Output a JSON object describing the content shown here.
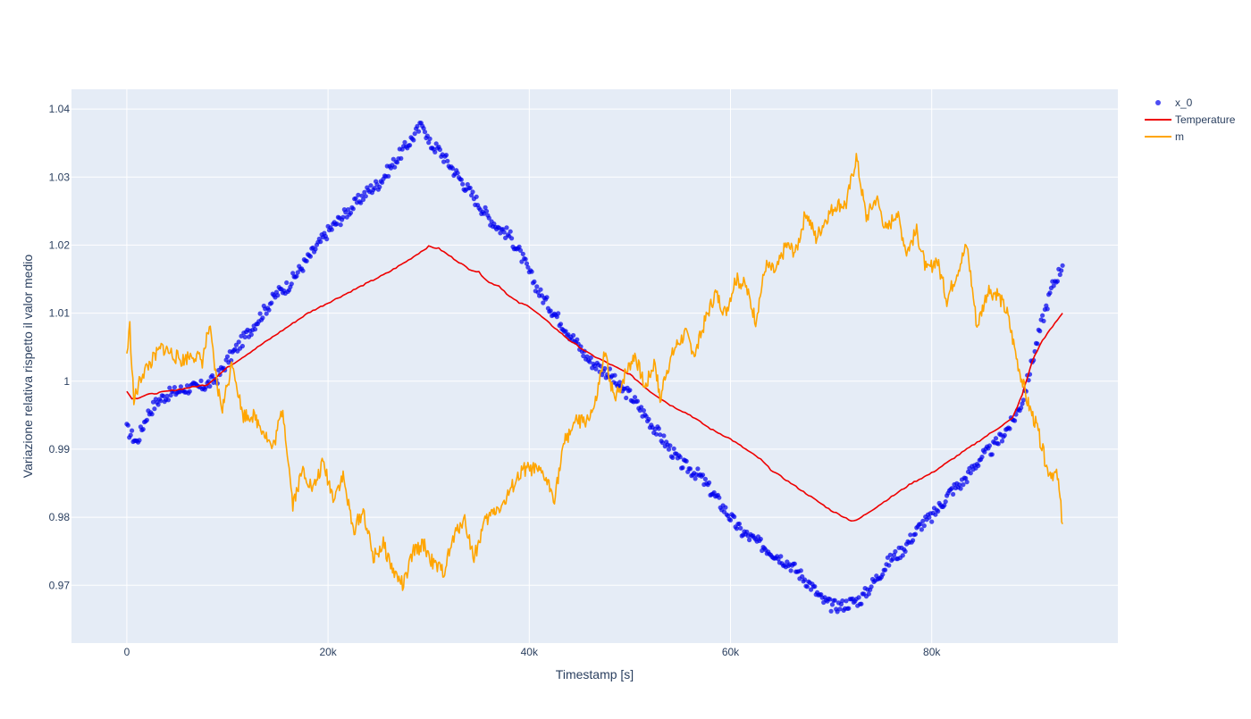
{
  "chart_data": {
    "type": "line",
    "xlabel": "Timestamp [s]",
    "ylabel": "Variazione relativa rispetto il valor medio",
    "xlim": [
      -5500,
      98500
    ],
    "ylim": [
      0.9615,
      1.0429
    ],
    "grid": true,
    "legend_position": "top-right",
    "plot_bg": "#e5ecf6",
    "x_ticks": [
      {
        "value": 0,
        "label": "0"
      },
      {
        "value": 20000,
        "label": "20k"
      },
      {
        "value": 40000,
        "label": "40k"
      },
      {
        "value": 60000,
        "label": "60k"
      },
      {
        "value": 80000,
        "label": "80k"
      }
    ],
    "y_ticks": [
      {
        "value": 0.97,
        "label": "0.97"
      },
      {
        "value": 0.98,
        "label": "0.98"
      },
      {
        "value": 0.99,
        "label": "0.99"
      },
      {
        "value": 1.0,
        "label": "1"
      },
      {
        "value": 1.01,
        "label": "1.01"
      },
      {
        "value": 1.02,
        "label": "1.02"
      },
      {
        "value": 1.03,
        "label": "1.03"
      },
      {
        "value": 1.04,
        "label": "1.04"
      }
    ],
    "series": [
      {
        "name": "x_0",
        "mode": "markers",
        "color": "#0000ee",
        "x": [
          0,
          1000,
          2000,
          3000,
          4000,
          5000,
          6000,
          7000,
          8000,
          9000,
          10000,
          11000,
          12000,
          13000,
          14000,
          15000,
          16000,
          17000,
          18000,
          19000,
          20000,
          21000,
          22000,
          23000,
          24000,
          25000,
          26000,
          27000,
          28000,
          29000,
          29500,
          30000,
          31000,
          32000,
          33000,
          34000,
          35000,
          36000,
          37000,
          38000,
          39000,
          40000,
          41000,
          42000,
          43000,
          44000,
          45000,
          46000,
          47000,
          48000,
          49000,
          50000,
          51000,
          52000,
          53000,
          54000,
          55000,
          56000,
          57000,
          58000,
          59000,
          60000,
          61000,
          62000,
          63000,
          64000,
          65000,
          66000,
          67000,
          68000,
          69000,
          70000,
          71000,
          72000,
          73000,
          74000,
          75000,
          76000,
          77000,
          78000,
          79000,
          80000,
          81000,
          82000,
          83000,
          84000,
          85000,
          86000,
          87000,
          88000,
          89000,
          90000,
          91000,
          92000,
          93000
        ],
        "y": [
          0.993,
          0.991,
          0.995,
          0.997,
          0.998,
          0.9985,
          0.999,
          0.999,
          0.9995,
          1.0005,
          1.003,
          1.005,
          1.007,
          1.009,
          1.011,
          1.013,
          1.014,
          1.016,
          1.018,
          1.02,
          1.022,
          1.0235,
          1.025,
          1.0265,
          1.028,
          1.029,
          1.031,
          1.033,
          1.035,
          1.037,
          1.038,
          1.035,
          1.034,
          1.032,
          1.03,
          1.028,
          1.026,
          1.024,
          1.0225,
          1.0215,
          1.019,
          1.016,
          1.013,
          1.011,
          1.009,
          1.007,
          1.005,
          1.003,
          1.002,
          1.001,
          0.999,
          0.998,
          0.996,
          0.994,
          0.992,
          0.99,
          0.988,
          0.987,
          0.986,
          0.984,
          0.982,
          0.98,
          0.978,
          0.977,
          0.976,
          0.975,
          0.974,
          0.973,
          0.9715,
          0.97,
          0.968,
          0.967,
          0.967,
          0.9675,
          0.968,
          0.97,
          0.972,
          0.974,
          0.975,
          0.977,
          0.979,
          0.98,
          0.982,
          0.984,
          0.985,
          0.987,
          0.989,
          0.99,
          0.992,
          0.994,
          0.997,
          1.003,
          1.009,
          1.014,
          1.017
        ]
      },
      {
        "name": "Temperature",
        "mode": "lines",
        "color": "#ee0000",
        "x": [
          0,
          500,
          1000,
          2000,
          4000,
          6000,
          8000,
          10000,
          12000,
          14000,
          16000,
          18000,
          20000,
          22000,
          24000,
          26000,
          28000,
          29000,
          30000,
          31000,
          32000,
          33000,
          34000,
          35000,
          36000,
          37000,
          38000,
          39000,
          40000,
          42000,
          44000,
          46000,
          48000,
          50000,
          52000,
          54000,
          56000,
          58000,
          60000,
          62000,
          63000,
          64000,
          66000,
          68000,
          70000,
          72000,
          72500,
          74000,
          76000,
          78000,
          80000,
          82000,
          84000,
          86000,
          88000,
          89000,
          90000,
          91000,
          92000,
          93000
        ],
        "y": [
          0.9985,
          0.9975,
          0.9975,
          0.998,
          0.9985,
          0.999,
          0.9995,
          1.002,
          1.004,
          1.006,
          1.008,
          1.01,
          1.0115,
          1.013,
          1.0145,
          1.016,
          1.0178,
          1.0188,
          1.0198,
          1.0195,
          1.0185,
          1.0175,
          1.0165,
          1.016,
          1.0145,
          1.014,
          1.0125,
          1.0115,
          1.011,
          1.0085,
          1.006,
          1.004,
          1.0025,
          1.001,
          0.9985,
          0.9965,
          0.995,
          0.993,
          0.9915,
          0.9895,
          0.9885,
          0.987,
          0.985,
          0.983,
          0.981,
          0.9795,
          0.9795,
          0.981,
          0.983,
          0.985,
          0.9865,
          0.9885,
          0.9905,
          0.9925,
          0.9945,
          0.998,
          1.003,
          1.006,
          1.008,
          1.01
        ]
      },
      {
        "name": "m",
        "mode": "lines",
        "color": "#ffa500",
        "x": [
          0,
          300,
          700,
          1500,
          2500,
          3500,
          4500,
          5500,
          6500,
          7500,
          8200,
          9000,
          9500,
          10500,
          11500,
          12500,
          13500,
          14500,
          15500,
          16500,
          17500,
          18500,
          19500,
          20500,
          21500,
          22500,
          23500,
          24500,
          25500,
          26500,
          27500,
          28500,
          29500,
          30500,
          31500,
          32500,
          33500,
          34500,
          35500,
          36500,
          37500,
          38500,
          39500,
          40500,
          41500,
          42500,
          43500,
          44500,
          45500,
          46500,
          47500,
          48500,
          49500,
          50500,
          51500,
          52500,
          53000,
          53500,
          54500,
          55500,
          56500,
          57500,
          58500,
          59500,
          60500,
          61500,
          62500,
          63500,
          64500,
          65500,
          66500,
          67500,
          68500,
          69500,
          70500,
          71500,
          72500,
          73500,
          74500,
          75500,
          76500,
          77500,
          78500,
          79500,
          80500,
          81500,
          82500,
          83500,
          84500,
          85500,
          86500,
          87500,
          88500,
          89500,
          90500,
          91500,
          92500,
          93000
        ],
        "y": [
          1.004,
          1.008,
          0.997,
          1.001,
          1.003,
          1.005,
          1.004,
          1.003,
          1.004,
          1.003,
          1.008,
          0.999,
          0.996,
          1.003,
          0.995,
          0.995,
          0.993,
          0.99,
          0.996,
          0.982,
          0.987,
          0.984,
          0.988,
          0.983,
          0.986,
          0.978,
          0.981,
          0.974,
          0.976,
          0.972,
          0.97,
          0.975,
          0.976,
          0.973,
          0.972,
          0.977,
          0.98,
          0.974,
          0.979,
          0.981,
          0.982,
          0.985,
          0.987,
          0.987,
          0.986,
          0.983,
          0.991,
          0.994,
          0.994,
          0.996,
          1.004,
          0.997,
          1.001,
          1.004,
          0.999,
          1.003,
          0.997,
          1.001,
          1.005,
          1.007,
          1.004,
          1.009,
          1.013,
          1.01,
          1.015,
          1.014,
          1.009,
          1.017,
          1.016,
          1.02,
          1.019,
          1.025,
          1.021,
          1.024,
          1.026,
          1.026,
          1.033,
          1.024,
          1.027,
          1.022,
          1.025,
          1.019,
          1.022,
          1.016,
          1.018,
          1.012,
          1.016,
          1.02,
          1.008,
          1.013,
          1.013,
          1.01,
          1.003,
          0.997,
          0.993,
          0.987,
          0.986,
          0.979
        ]
      }
    ]
  }
}
